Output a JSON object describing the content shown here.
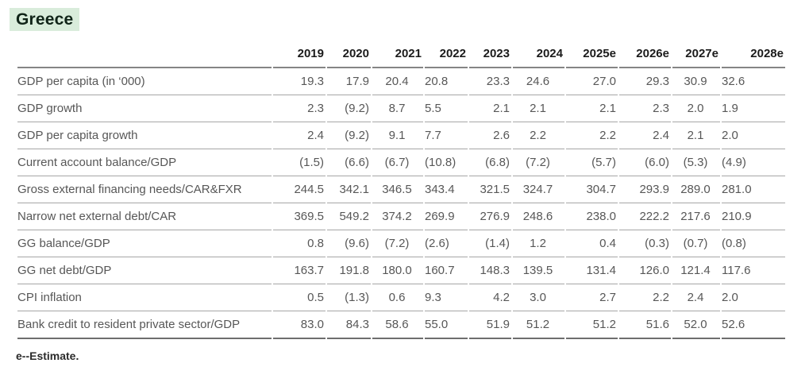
{
  "title": "Greece",
  "colors": {
    "title_highlight": "#d9ecdb",
    "title_text": "#102418",
    "header_rule": "#858585",
    "row_rule": "#a6a6a6",
    "bottom_rule": "#6e6e6e"
  },
  "table": {
    "label_column_header": "",
    "columns": [
      "2019",
      "2020",
      "2021",
      "2022",
      "2023",
      "2024",
      "2025e",
      "2026e",
      "2027e",
      "2028e"
    ],
    "rows": [
      {
        "label": "GDP per capita (in ‘000)",
        "values": [
          "19.3",
          "17.9",
          "20.4",
          "20.8",
          "23.3",
          "24.6",
          "27.0",
          "29.3",
          "30.9",
          "32.6"
        ]
      },
      {
        "label": "GDP growth",
        "values": [
          "2.3",
          "(9.2)",
          "8.7",
          "5.5",
          "2.1",
          "2.1",
          "2.1",
          "2.3",
          "2.0",
          "1.9"
        ]
      },
      {
        "label": "GDP per capita growth",
        "values": [
          "2.4",
          "(9.2)",
          "9.1",
          "7.7",
          "2.6",
          "2.2",
          "2.2",
          "2.4",
          "2.1",
          "2.0"
        ]
      },
      {
        "label": "Current account balance/GDP",
        "values": [
          "(1.5)",
          "(6.6)",
          "(6.7)",
          "(10.8)",
          "(6.8)",
          "(7.2)",
          "(5.7)",
          "(6.0)",
          "(5.3)",
          "(4.9)"
        ]
      },
      {
        "label": "Gross external financing needs/CAR&FXR",
        "values": [
          "244.5",
          "342.1",
          "346.5",
          "343.4",
          "321.5",
          "324.7",
          "304.7",
          "293.9",
          "289.0",
          "281.0"
        ]
      },
      {
        "label": "Narrow net external debt/CAR",
        "values": [
          "369.5",
          "549.2",
          "374.2",
          "269.9",
          "276.9",
          "248.6",
          "238.0",
          "222.2",
          "217.6",
          "210.9"
        ]
      },
      {
        "label": "GG balance/GDP",
        "values": [
          "0.8",
          "(9.6)",
          "(7.2)",
          "(2.6)",
          "(1.4)",
          "1.2",
          "0.4",
          "(0.3)",
          "(0.7)",
          "(0.8)"
        ]
      },
      {
        "label": "GG net debt/GDP",
        "values": [
          "163.7",
          "191.8",
          "180.0",
          "160.7",
          "148.3",
          "139.5",
          "131.4",
          "126.0",
          "121.4",
          "117.6"
        ]
      },
      {
        "label": "CPI inflation",
        "values": [
          "0.5",
          "(1.3)",
          "0.6",
          "9.3",
          "4.2",
          "3.0",
          "2.7",
          "2.2",
          "2.4",
          "2.0"
        ]
      },
      {
        "label": "Bank credit to resident private sector/GDP",
        "values": [
          "83.0",
          "84.3",
          "58.6",
          "55.0",
          "51.9",
          "51.2",
          "51.2",
          "51.6",
          "52.0",
          "52.6"
        ]
      }
    ]
  },
  "footnote": "e--Estimate."
}
